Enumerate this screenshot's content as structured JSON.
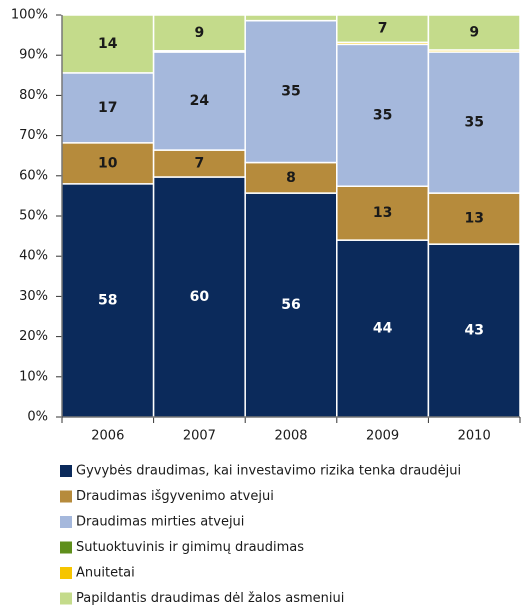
{
  "chart_data": {
    "type": "stacked_bar_100",
    "categories": [
      "2006",
      "2007",
      "2008",
      "2009",
      "2010"
    ],
    "ylim": [
      0,
      100
    ],
    "yticks": [
      {
        "value": 0,
        "label": "0%"
      },
      {
        "value": 10,
        "label": "10%"
      },
      {
        "value": 20,
        "label": "20%"
      },
      {
        "value": 30,
        "label": "30%"
      },
      {
        "value": 40,
        "label": "40%"
      },
      {
        "value": 50,
        "label": "50%"
      },
      {
        "value": 60,
        "label": "60%"
      },
      {
        "value": 70,
        "label": "70%"
      },
      {
        "value": 80,
        "label": "80%"
      },
      {
        "value": 90,
        "label": "90%"
      },
      {
        "value": 100,
        "label": "100%"
      }
    ],
    "series": [
      {
        "name": "Gyvybės draudimas, kai investavimo rizika tenka draudėjui",
        "color": "#0b2a5b",
        "values": [
          58,
          59.7,
          55.7,
          44,
          43
        ],
        "value_labels": [
          "58",
          "60",
          "56",
          "44",
          "43"
        ]
      },
      {
        "name": "Draudimas išgyvenimo atvejui",
        "color": "#b68b3c",
        "values": [
          10.2,
          6.7,
          7.6,
          13.4,
          12.7
        ],
        "value_labels": [
          "10",
          "7",
          "8",
          "13",
          "13"
        ]
      },
      {
        "name": "Draudimas mirties atvejui",
        "color": "#a5b8dc",
        "values": [
          17.4,
          24.4,
          35.3,
          35.3,
          35.1
        ],
        "value_labels": [
          "17",
          "24",
          "35",
          "35",
          "35"
        ]
      },
      {
        "name": "Sutuoktuvinis ir gimimų draudimas",
        "color": "#5f8f1c",
        "values": [
          0,
          0,
          0,
          0,
          0
        ],
        "value_labels": [
          null,
          null,
          null,
          null,
          null
        ]
      },
      {
        "name": "Anuitetai",
        "color": "#f6c500",
        "values": [
          0,
          0.3,
          0,
          0.5,
          0.5
        ],
        "value_labels": [
          null,
          null,
          null,
          null,
          null
        ]
      },
      {
        "name": "Papildantis draudimas dėl žalos asmeniui",
        "color": "#c4db8b",
        "values": [
          14.4,
          8.9,
          1.4,
          6.8,
          8.7
        ],
        "value_labels": [
          "14",
          "9",
          null,
          "7",
          "9"
        ]
      }
    ]
  }
}
